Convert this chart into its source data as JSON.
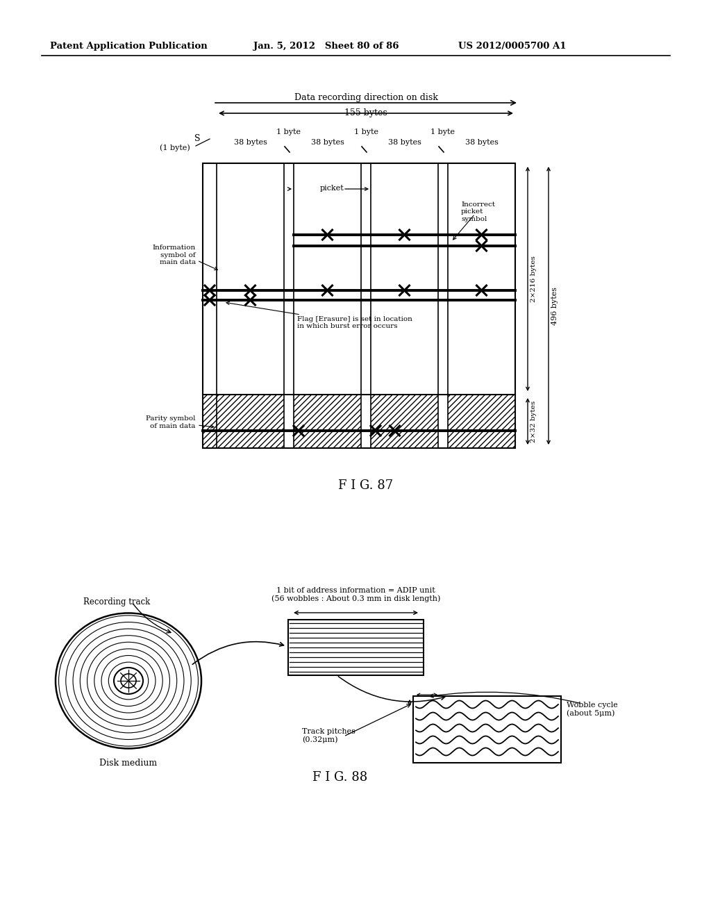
{
  "header_left": "Patent Application Publication",
  "header_mid": "Jan. 5, 2012   Sheet 80 of 86",
  "header_right": "US 2012/0005700 A1",
  "fig87_label": "F I G. 87",
  "fig88_label": "F I G. 88",
  "bg_color": "#ffffff",
  "text_color": "#000000"
}
